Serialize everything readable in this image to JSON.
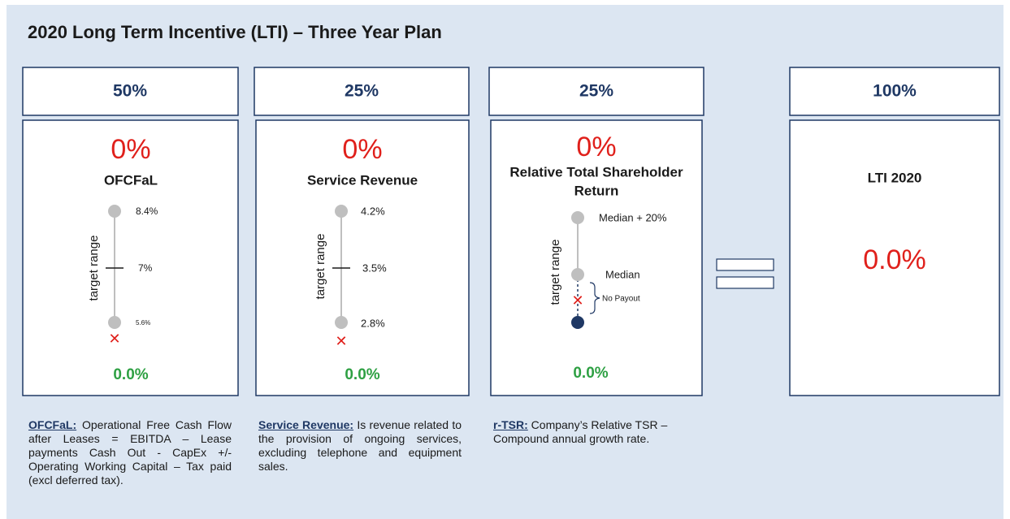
{
  "title": "2020 Long Term Incentive (LTI) – Three Year Plan",
  "columns": [
    {
      "weight": "50%",
      "result": "0%",
      "name": "OFCFaL",
      "axis_label": "target range",
      "max": "8.4%",
      "target": "7%",
      "min": "5.6%",
      "payout": "0.0%"
    },
    {
      "weight": "25%",
      "result": "0%",
      "name": "Service Revenue",
      "axis_label": "target range",
      "max": "4.2%",
      "target": "3.5%",
      "min": "2.8%",
      "payout": "0.0%"
    },
    {
      "weight": "25%",
      "result": "0%",
      "name_lines": [
        "Relative Total Shareholder",
        "Return"
      ],
      "axis_label": "target range",
      "max": "Median + 20%",
      "target": "Median",
      "no_payout": "No Payout",
      "payout": "0.0%"
    }
  ],
  "total": {
    "weight": "100%",
    "name": "LTI 2020",
    "value": "0.0%"
  },
  "notes": [
    {
      "term": "OFCFaL:",
      "text": "Operational Free Cash Flow after Leases = EBITDA – Lease payments Cash Out - CapEx +/- Operating Working Capital – Tax paid (excl deferred tax)."
    },
    {
      "term": "Service Revenue:",
      "text": "Is revenue related to the provision of ongoing services, excluding telephone and equipment sales."
    },
    {
      "term": "r-TSR:",
      "text": "Company’s Relative TSR – Compound annual growth rate."
    }
  ]
}
